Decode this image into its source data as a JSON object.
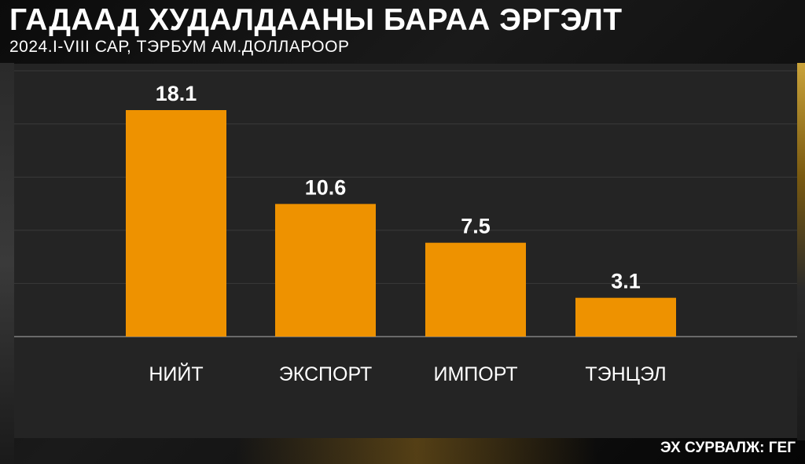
{
  "header": {
    "title": "ГАДААД ХУДАЛДААНЫ БАРАА ЭРГЭЛТ",
    "subtitle": "2024.I-VIII САР, ТЭРБУМ АМ.ДОЛЛАРООР"
  },
  "footer": {
    "source": "ЭХ СУРВАЛЖ: ГЕГ"
  },
  "colors": {
    "bar": "#ee9200",
    "panel": "#242424",
    "text": "#ffffff",
    "grid": "#3a3a3a",
    "baseline": "#6a6a6a"
  },
  "chart_data": {
    "type": "bar",
    "categories": [
      "НИЙТ",
      "ЭКСПОРТ",
      "ИМПОРТ",
      "ТЭНЦЭЛ"
    ],
    "values": [
      18.1,
      10.6,
      7.5,
      3.1
    ],
    "data_labels": [
      "18.1",
      "10.6",
      "7.5",
      "3.1"
    ],
    "title": "ГАДААД ХУДАЛДААНЫ БАРАА ЭРГЭЛТ",
    "subtitle": "2024.I-VIII САР, ТЭРБУМ АМ.ДОЛЛАРООР",
    "xlabel": "",
    "ylabel": "",
    "ylim": [
      0,
      20
    ],
    "grid": true,
    "legend": "none"
  }
}
